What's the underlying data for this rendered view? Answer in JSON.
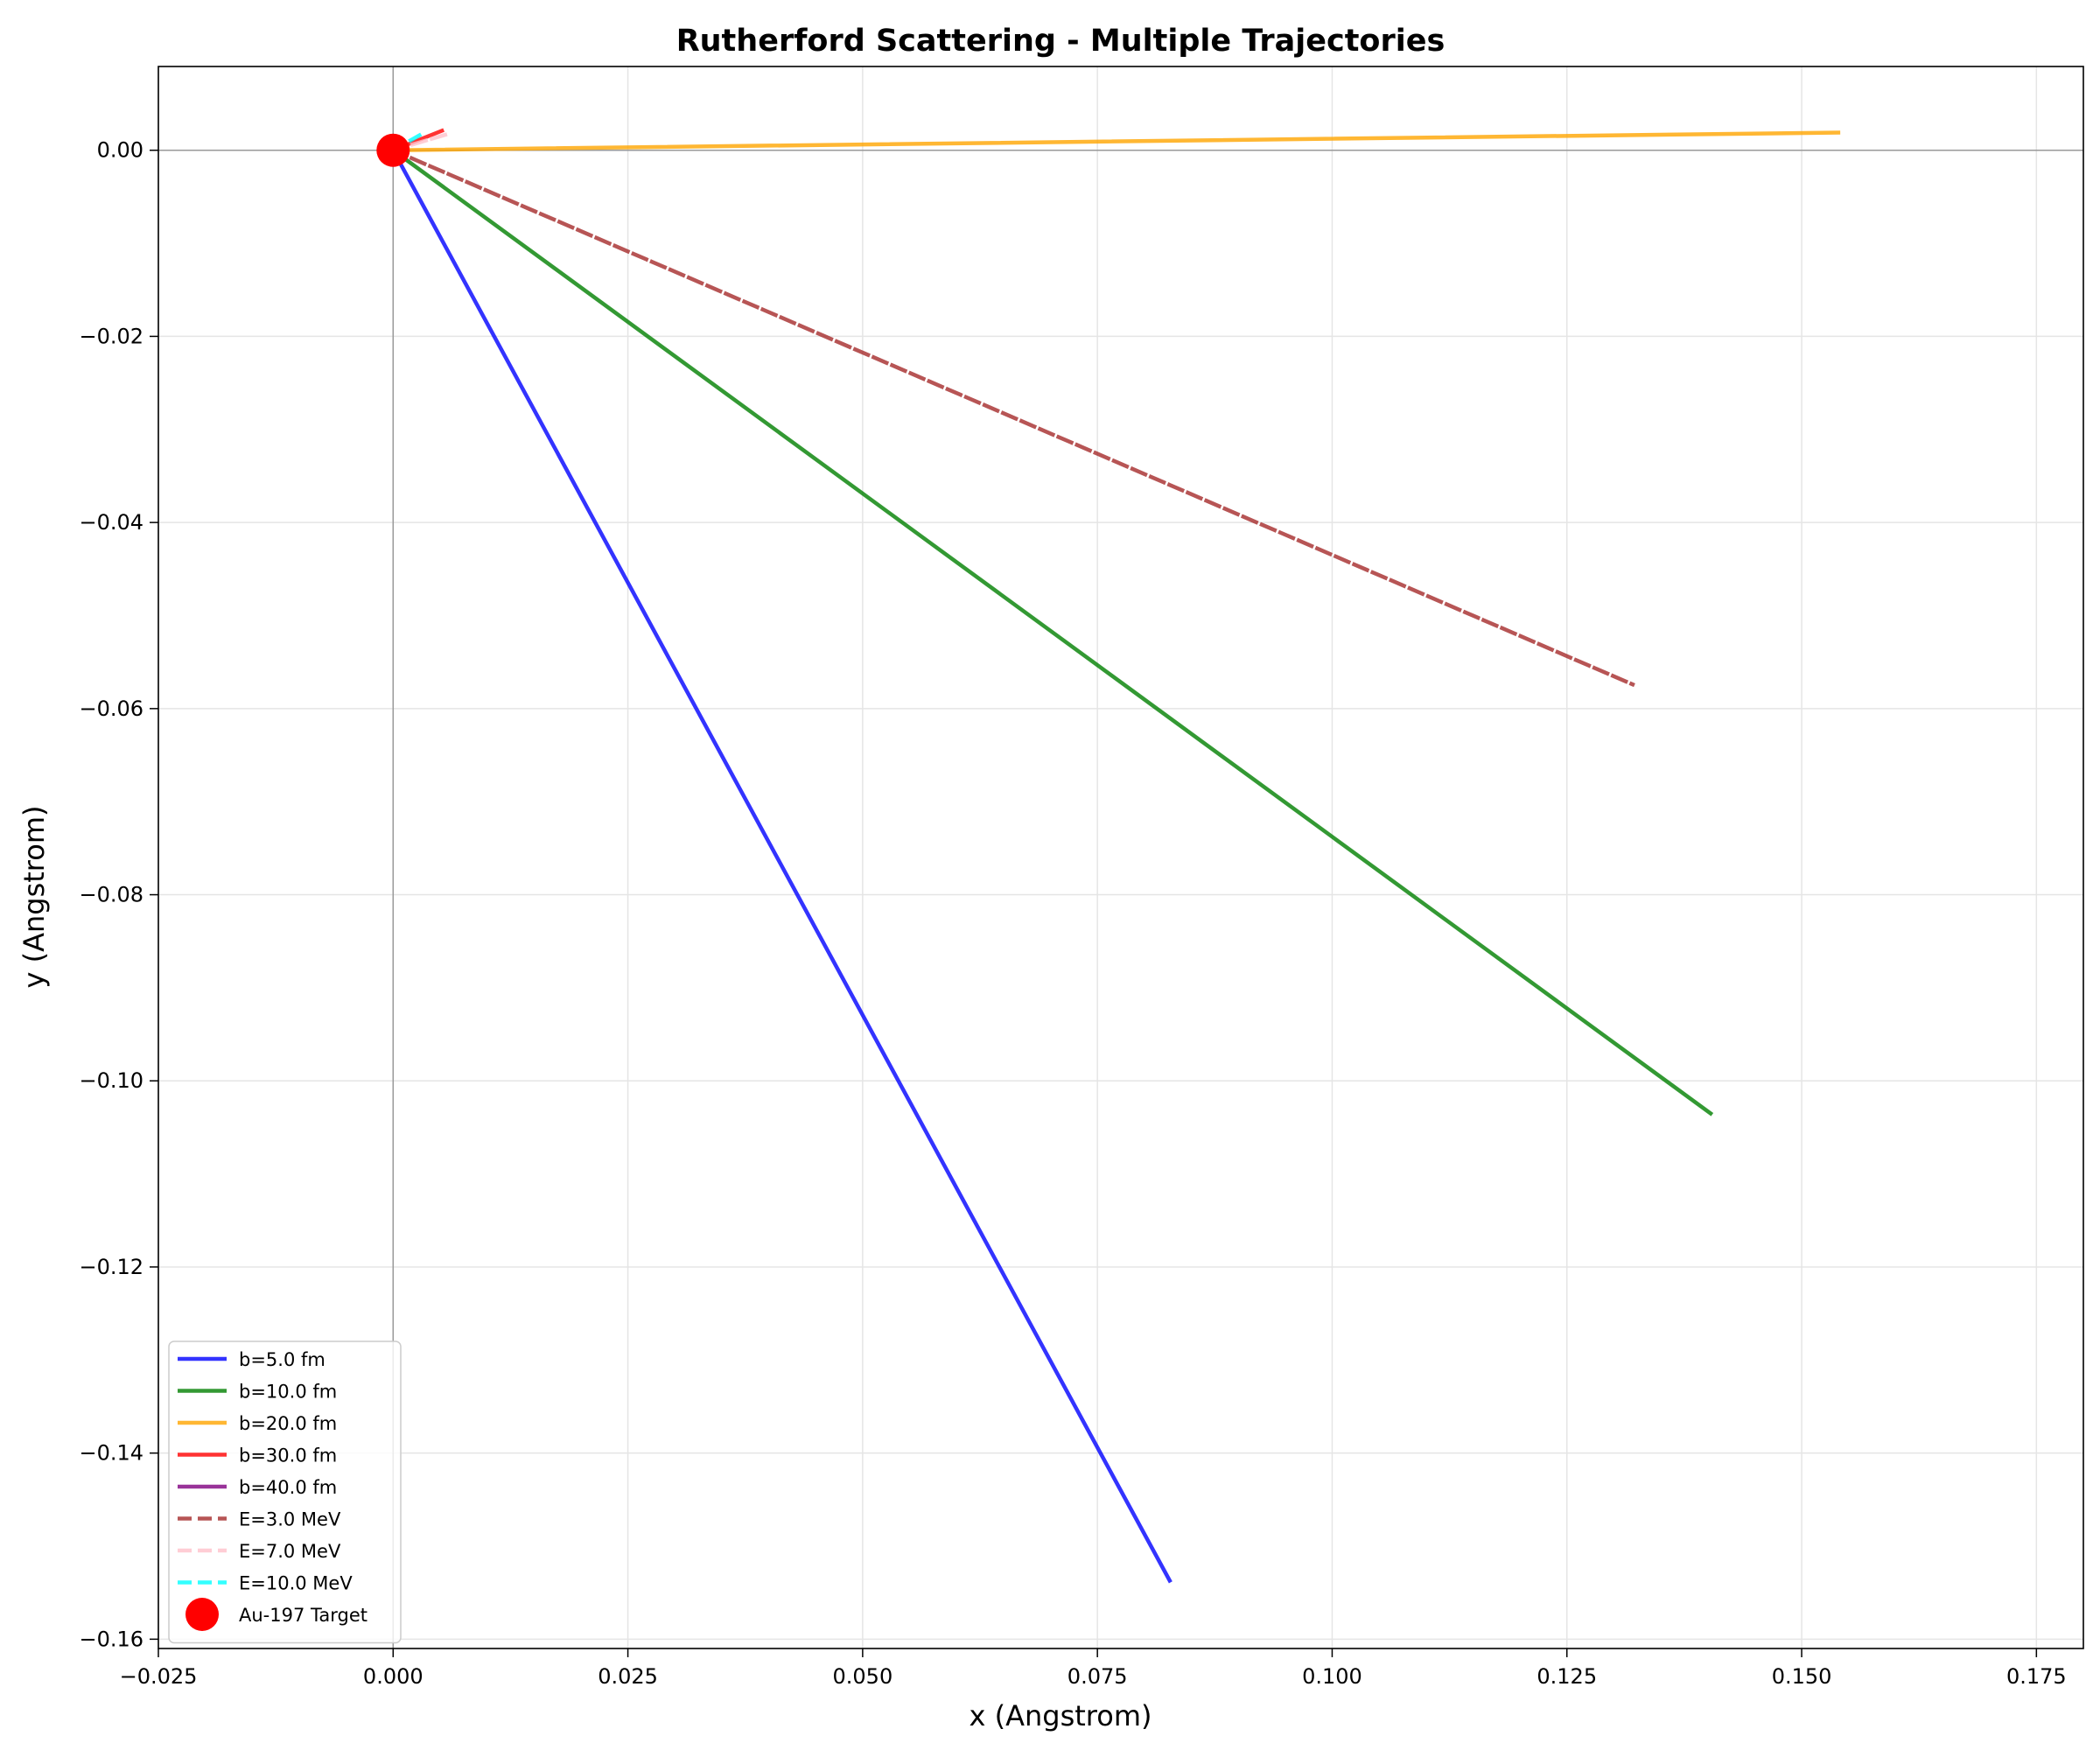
{
  "chart_data": {
    "type": "line",
    "title": "Rutherford Scattering - Multiple Trajectories",
    "xlabel": "x (Angstrom)",
    "ylabel": "y (Angstrom)",
    "xlim": [
      -0.025,
      0.18
    ],
    "ylim": [
      -0.161,
      0.009
    ],
    "xticks": [
      -0.025,
      0.0,
      0.025,
      0.05,
      0.075,
      0.1,
      0.125,
      0.15,
      0.175
    ],
    "xtick_labels": [
      "−0.025",
      "0.000",
      "0.025",
      "0.050",
      "0.075",
      "0.100",
      "0.125",
      "0.150",
      "0.175"
    ],
    "yticks": [
      0.0,
      -0.02,
      -0.04,
      -0.06,
      -0.08,
      -0.1,
      -0.12,
      -0.14,
      -0.16
    ],
    "ytick_labels": [
      "0.00",
      "−0.02",
      "−0.04",
      "−0.06",
      "−0.08",
      "−0.10",
      "−0.12",
      "−0.14",
      "−0.16"
    ],
    "grid": true,
    "legend_position": "bottom-left",
    "series": [
      {
        "name": "b=5.0 fm",
        "color": "#0000ff",
        "dash": "solid",
        "x": [
          0.0,
          0.0827
        ],
        "y": [
          0.0,
          -0.1537
        ]
      },
      {
        "name": "b=10.0 fm",
        "color": "#008000",
        "dash": "solid",
        "x": [
          0.0,
          0.1403
        ],
        "y": [
          0.0,
          -0.1035
        ]
      },
      {
        "name": "b=20.0 fm",
        "color": "#ffa500",
        "dash": "solid",
        "x": [
          0.0,
          0.1539
        ],
        "y": [
          0.0,
          0.0019
        ]
      },
      {
        "name": "b=30.0 fm",
        "color": "#ff0000",
        "dash": "solid",
        "x": [
          0.0,
          0.0052
        ],
        "y": [
          0.0,
          0.0021
        ]
      },
      {
        "name": "b=40.0 fm",
        "color": "#800080",
        "dash": "solid",
        "x": [
          0.0,
          0.0005
        ],
        "y": [
          0.0,
          0.0002
        ]
      },
      {
        "name": "E=3.0 MeV",
        "color": "#a52a2a",
        "dash": "dashed",
        "x": [
          0.0,
          0.132
        ],
        "y": [
          0.0,
          -0.0574
        ]
      },
      {
        "name": "E=7.0 MeV",
        "color": "#ffc0cb",
        "dash": "dashed",
        "x": [
          0.0,
          0.006
        ],
        "y": [
          0.0,
          0.0018
        ]
      },
      {
        "name": "E=10.0 MeV",
        "color": "#00ffff",
        "dash": "dashed",
        "x": [
          0.0,
          0.0028
        ],
        "y": [
          0.0,
          0.0016
        ]
      }
    ],
    "target": {
      "name": "Au-197 Target",
      "color": "#ff0000",
      "x": 0.0,
      "y": 0.0
    }
  }
}
